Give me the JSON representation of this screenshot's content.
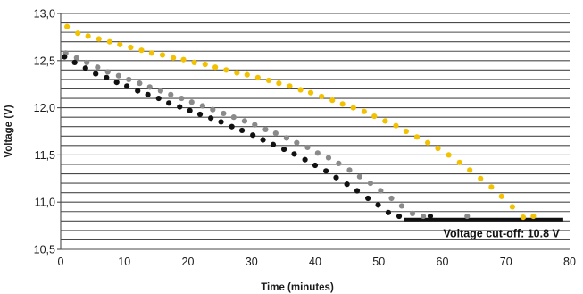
{
  "chart_data": {
    "type": "scatter",
    "title": "",
    "xlabel": "Time (minutes)",
    "ylabel": "Voltage (V)",
    "xlim": [
      0,
      80
    ],
    "ylim": [
      10.5,
      13.0
    ],
    "x_ticks": [
      0,
      10,
      20,
      30,
      40,
      50,
      60,
      70,
      80
    ],
    "y_ticks": [
      10.5,
      11.0,
      11.5,
      12.0,
      12.5,
      13.0
    ],
    "x_tick_labels": [
      "0",
      "10",
      "20",
      "30",
      "40",
      "50",
      "60",
      "70",
      "80"
    ],
    "y_tick_labels": [
      "10,5",
      "11,0",
      "11,5",
      "12,0",
      "12,5",
      "13,0"
    ],
    "grid": "horizontal",
    "series": [
      {
        "color": "#f2c200",
        "points": [
          [
            1,
            12.86
          ],
          [
            2.7,
            12.79
          ],
          [
            4.3,
            12.76
          ],
          [
            6,
            12.73
          ],
          [
            7.7,
            12.7
          ],
          [
            9.3,
            12.67
          ],
          [
            11,
            12.64
          ],
          [
            12.7,
            12.61
          ],
          [
            14.3,
            12.58
          ],
          [
            16,
            12.56
          ],
          [
            17.7,
            12.53
          ],
          [
            19.3,
            12.51
          ],
          [
            21,
            12.48
          ],
          [
            22.7,
            12.46
          ],
          [
            24.3,
            12.43
          ],
          [
            26,
            12.4
          ],
          [
            27.7,
            12.37
          ],
          [
            29.3,
            12.35
          ],
          [
            31,
            12.32
          ],
          [
            32.7,
            12.29
          ],
          [
            34.3,
            12.26
          ],
          [
            36,
            12.23
          ],
          [
            37.7,
            12.19
          ],
          [
            39.3,
            12.16
          ],
          [
            41,
            12.12
          ],
          [
            42.7,
            12.08
          ],
          [
            44.3,
            12.04
          ],
          [
            46,
            12.0
          ],
          [
            47.7,
            11.96
          ],
          [
            49.3,
            11.91
          ],
          [
            51,
            11.86
          ],
          [
            52.7,
            11.81
          ],
          [
            54.3,
            11.75
          ],
          [
            56,
            11.69
          ],
          [
            57.7,
            11.63
          ],
          [
            59.3,
            11.57
          ],
          [
            61,
            11.5
          ],
          [
            62.7,
            11.42
          ],
          [
            64.3,
            11.34
          ],
          [
            66,
            11.25
          ],
          [
            67.7,
            11.16
          ],
          [
            69.3,
            11.06
          ],
          [
            71,
            10.95
          ],
          [
            72.7,
            10.84
          ],
          [
            74.3,
            10.85
          ]
        ]
      },
      {
        "color": "#8a8a8a",
        "points": [
          [
            0.8,
            12.58
          ],
          [
            2.5,
            12.53
          ],
          [
            4.1,
            12.48
          ],
          [
            5.8,
            12.43
          ],
          [
            7.4,
            12.38
          ],
          [
            9.1,
            12.34
          ],
          [
            10.7,
            12.3
          ],
          [
            12.4,
            12.26
          ],
          [
            14,
            12.22
          ],
          [
            15.7,
            12.18
          ],
          [
            17.3,
            12.14
          ],
          [
            19,
            12.1
          ],
          [
            20.6,
            12.06
          ],
          [
            22.3,
            12.02
          ],
          [
            23.9,
            11.98
          ],
          [
            25.6,
            11.94
          ],
          [
            27.2,
            11.9
          ],
          [
            28.9,
            11.86
          ],
          [
            30.5,
            11.82
          ],
          [
            32.2,
            11.77
          ],
          [
            33.8,
            11.73
          ],
          [
            35.5,
            11.68
          ],
          [
            37.1,
            11.63
          ],
          [
            38.8,
            11.58
          ],
          [
            40.4,
            11.52
          ],
          [
            42.1,
            11.47
          ],
          [
            43.7,
            11.41
          ],
          [
            45.4,
            11.34
          ],
          [
            47,
            11.27
          ],
          [
            48.7,
            11.2
          ],
          [
            50.3,
            11.12
          ],
          [
            52,
            11.04
          ],
          [
            53.6,
            10.96
          ],
          [
            55.3,
            10.88
          ],
          [
            57,
            10.85
          ],
          [
            63.9,
            10.85
          ]
        ]
      },
      {
        "color": "#111111",
        "points": [
          [
            0.6,
            12.54
          ],
          [
            2.2,
            12.48
          ],
          [
            3.9,
            12.42
          ],
          [
            5.5,
            12.36
          ],
          [
            7.2,
            12.32
          ],
          [
            8.8,
            12.27
          ],
          [
            10.4,
            12.23
          ],
          [
            12.1,
            12.18
          ],
          [
            13.7,
            12.14
          ],
          [
            15.4,
            12.1
          ],
          [
            17,
            12.05
          ],
          [
            18.7,
            12.01
          ],
          [
            20.3,
            11.97
          ],
          [
            21.9,
            11.93
          ],
          [
            23.6,
            11.89
          ],
          [
            25.2,
            11.85
          ],
          [
            26.9,
            11.8
          ],
          [
            28.5,
            11.76
          ],
          [
            30.2,
            11.71
          ],
          [
            31.8,
            11.66
          ],
          [
            33.4,
            11.61
          ],
          [
            35.1,
            11.56
          ],
          [
            36.7,
            11.51
          ],
          [
            38.4,
            11.45
          ],
          [
            40,
            11.39
          ],
          [
            41.7,
            11.33
          ],
          [
            43.3,
            11.26
          ],
          [
            45,
            11.19
          ],
          [
            46.6,
            11.12
          ],
          [
            48.3,
            11.04
          ],
          [
            49.9,
            10.97
          ],
          [
            51.5,
            10.89
          ],
          [
            53.2,
            10.85
          ],
          [
            58.1,
            10.85
          ]
        ]
      }
    ],
    "cutoff": {
      "label": "Voltage cut-off: 10.8 V",
      "y": 10.815,
      "x_start": 54,
      "x_end": 79
    }
  }
}
